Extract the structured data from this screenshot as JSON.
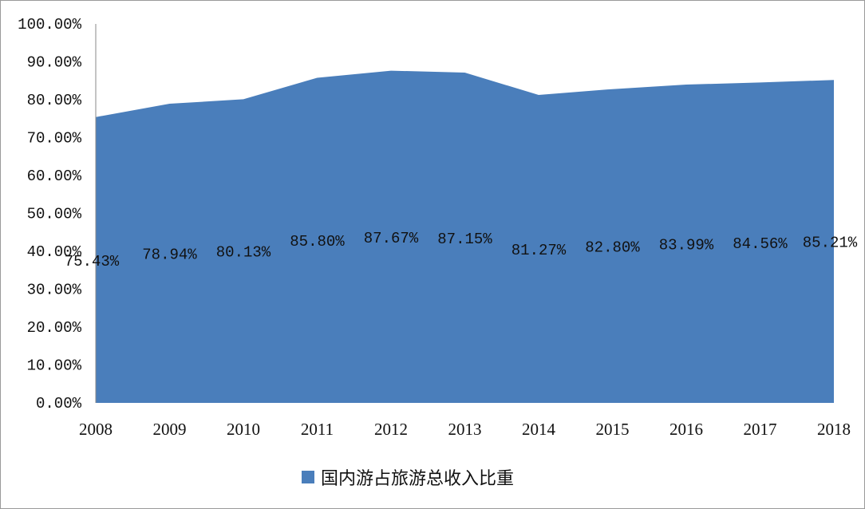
{
  "chart_data": {
    "type": "area",
    "categories": [
      "2008",
      "2009",
      "2010",
      "2011",
      "2012",
      "2013",
      "2014",
      "2015",
      "2016",
      "2017",
      "2018"
    ],
    "series": [
      {
        "name": "国内游占旅游总收入比重",
        "values": [
          75.43,
          78.94,
          80.13,
          85.8,
          87.67,
          87.15,
          81.27,
          82.8,
          83.99,
          84.56,
          85.21
        ],
        "labels": [
          "75.43%",
          "78.94%",
          "80.13%",
          "85.80%",
          "87.67%",
          "87.15%",
          "81.27%",
          "82.80%",
          "83.99%",
          "84.56%",
          "85.21%"
        ]
      }
    ],
    "ylim": [
      0,
      100
    ],
    "yticks": [
      "0.00%",
      "10.00%",
      "20.00%",
      "30.00%",
      "40.00%",
      "50.00%",
      "60.00%",
      "70.00%",
      "80.00%",
      "90.00%",
      "100.00%"
    ],
    "grid": false,
    "legend": "bottom",
    "color": "#4a7ebb",
    "title": "",
    "xlabel": "",
    "ylabel": ""
  }
}
